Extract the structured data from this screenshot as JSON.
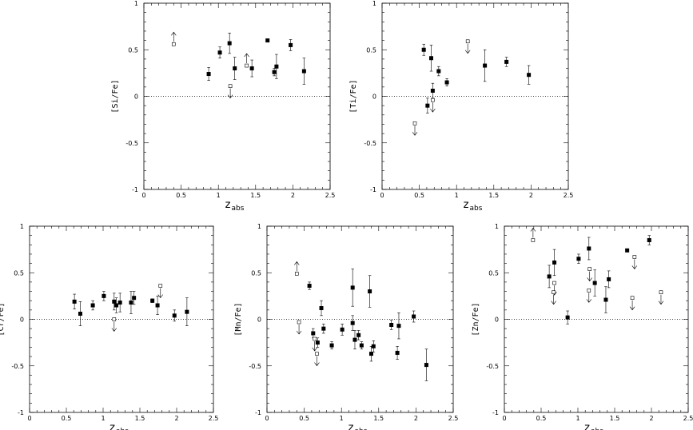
{
  "chart_data": [
    {
      "type": "scatter",
      "ylabel": "[Si/Fe]",
      "xlabel_main": "z",
      "xlabel_sub": "abs",
      "xlim": [
        0,
        2.5
      ],
      "ylim": [
        -1,
        1
      ],
      "xticks": [
        "0",
        "0.5",
        "1",
        "1.5",
        "2",
        "2.5"
      ],
      "yticks": [
        "-1",
        "-0.5",
        "0",
        "0.5",
        "1"
      ],
      "zero_line": true,
      "points": [
        {
          "x": 0.87,
          "y": 0.24,
          "err": 0.07,
          "limit": "none"
        },
        {
          "x": 1.02,
          "y": 0.47,
          "err": 0.06,
          "limit": "none"
        },
        {
          "x": 1.15,
          "y": 0.57,
          "err": 0.11,
          "limit": "none"
        },
        {
          "x": 1.22,
          "y": 0.3,
          "err": 0.12,
          "limit": "none"
        },
        {
          "x": 1.45,
          "y": 0.3,
          "err": 0.09,
          "limit": "none"
        },
        {
          "x": 1.66,
          "y": 0.6,
          "err": 0.0,
          "limit": "none"
        },
        {
          "x": 1.78,
          "y": 0.32,
          "err": 0.13,
          "limit": "none"
        },
        {
          "x": 1.97,
          "y": 0.55,
          "err": 0.06,
          "limit": "none"
        },
        {
          "x": 2.15,
          "y": 0.27,
          "err": 0.14,
          "limit": "none"
        },
        {
          "x": 1.75,
          "y": 0.26,
          "err": 0.04,
          "limit": "none"
        },
        {
          "x": 0.4,
          "y": 0.56,
          "err": 0,
          "limit": "lower"
        },
        {
          "x": 1.38,
          "y": 0.33,
          "err": 0,
          "limit": "lower"
        },
        {
          "x": 1.16,
          "y": 0.11,
          "err": 0,
          "limit": "upper"
        }
      ]
    },
    {
      "type": "scatter",
      "ylabel": "[Ti/Fe]",
      "xlabel_main": "z",
      "xlabel_sub": "abs",
      "xlim": [
        0,
        2.5
      ],
      "ylim": [
        -1,
        1
      ],
      "xticks": [
        "0",
        "0.5",
        "1",
        "1.5",
        "2",
        "2.5"
      ],
      "yticks": [
        "-1",
        "-0.5",
        "0",
        "0.5",
        "1"
      ],
      "zero_line": true,
      "points": [
        {
          "x": 0.56,
          "y": 0.5,
          "err": 0.06,
          "limit": "none"
        },
        {
          "x": 0.61,
          "y": -0.1,
          "err": 0.08,
          "limit": "none"
        },
        {
          "x": 0.66,
          "y": 0.41,
          "err": 0.14,
          "limit": "none"
        },
        {
          "x": 0.68,
          "y": 0.06,
          "err": 0.08,
          "limit": "none"
        },
        {
          "x": 0.76,
          "y": 0.27,
          "err": 0.05,
          "limit": "none"
        },
        {
          "x": 0.87,
          "y": 0.15,
          "err": 0.04,
          "limit": "none"
        },
        {
          "x": 1.38,
          "y": 0.33,
          "err": 0.17,
          "limit": "none"
        },
        {
          "x": 1.67,
          "y": 0.37,
          "err": 0.05,
          "limit": "none"
        },
        {
          "x": 1.97,
          "y": 0.23,
          "err": 0.1,
          "limit": "none"
        },
        {
          "x": 0.44,
          "y": -0.29,
          "err": 0,
          "limit": "upper"
        },
        {
          "x": 0.68,
          "y": -0.04,
          "err": 0,
          "limit": "upper"
        },
        {
          "x": 1.15,
          "y": 0.59,
          "err": 0,
          "limit": "upper"
        }
      ]
    },
    {
      "type": "scatter",
      "ylabel": "[Cr/Fe]",
      "xlabel_main": "z",
      "xlabel_sub": "abs",
      "xlim": [
        0,
        2.5
      ],
      "ylim": [
        -1,
        1
      ],
      "xticks": [
        "0",
        "0.5",
        "1",
        "1.5",
        "2",
        "2.5"
      ],
      "yticks": [
        "-1",
        "-0.5",
        "0",
        "0.5",
        "1"
      ],
      "zero_line": true,
      "points": [
        {
          "x": 0.61,
          "y": 0.19,
          "err": 0.08,
          "limit": "none"
        },
        {
          "x": 0.69,
          "y": 0.06,
          "err": 0.13,
          "limit": "none"
        },
        {
          "x": 0.86,
          "y": 0.15,
          "err": 0.05,
          "limit": "none"
        },
        {
          "x": 1.01,
          "y": 0.25,
          "err": 0.05,
          "limit": "none"
        },
        {
          "x": 1.15,
          "y": 0.19,
          "err": 0.09,
          "limit": "none"
        },
        {
          "x": 1.18,
          "y": 0.15,
          "err": 0.08,
          "limit": "none"
        },
        {
          "x": 1.23,
          "y": 0.18,
          "err": 0.1,
          "limit": "none"
        },
        {
          "x": 1.38,
          "y": 0.18,
          "err": 0.12,
          "limit": "none"
        },
        {
          "x": 1.42,
          "y": 0.23,
          "err": 0.07,
          "limit": "none"
        },
        {
          "x": 1.67,
          "y": 0.2,
          "err": 0.02,
          "limit": "none"
        },
        {
          "x": 1.74,
          "y": 0.15,
          "err": 0.1,
          "limit": "none"
        },
        {
          "x": 1.97,
          "y": 0.04,
          "err": 0.06,
          "limit": "none"
        },
        {
          "x": 2.14,
          "y": 0.08,
          "err": 0.15,
          "limit": "none"
        },
        {
          "x": 1.15,
          "y": 0.0,
          "err": 0,
          "limit": "upper"
        },
        {
          "x": 1.78,
          "y": 0.36,
          "err": 0,
          "limit": "upper"
        }
      ]
    },
    {
      "type": "scatter",
      "ylabel": "[Mn/Fe]",
      "xlabel_main": "z",
      "xlabel_sub": "abs",
      "xlim": [
        0,
        2.5
      ],
      "ylim": [
        -1,
        1
      ],
      "xticks": [
        "0",
        "0.5",
        "1",
        "1.5",
        "2",
        "2.5"
      ],
      "yticks": [
        "-1",
        "-0.5",
        "0",
        "0.5",
        "1"
      ],
      "zero_line": true,
      "points": [
        {
          "x": 0.57,
          "y": 0.36,
          "err": 0.04,
          "limit": "none"
        },
        {
          "x": 0.62,
          "y": -0.15,
          "err": 0.05,
          "limit": "none"
        },
        {
          "x": 0.68,
          "y": -0.25,
          "err": 0.05,
          "limit": "none"
        },
        {
          "x": 0.73,
          "y": 0.12,
          "err": 0.08,
          "limit": "none"
        },
        {
          "x": 0.76,
          "y": -0.1,
          "err": 0.05,
          "limit": "none"
        },
        {
          "x": 0.87,
          "y": -0.28,
          "err": 0.04,
          "limit": "none"
        },
        {
          "x": 1.01,
          "y": -0.11,
          "err": 0.06,
          "limit": "none"
        },
        {
          "x": 1.15,
          "y": 0.34,
          "err": 0.2,
          "limit": "none"
        },
        {
          "x": 1.15,
          "y": -0.04,
          "err": 0.08,
          "limit": "none"
        },
        {
          "x": 1.18,
          "y": -0.22,
          "err": 0.1,
          "limit": "none"
        },
        {
          "x": 1.23,
          "y": -0.17,
          "err": 0.05,
          "limit": "none"
        },
        {
          "x": 1.27,
          "y": -0.28,
          "err": 0.04,
          "limit": "none"
        },
        {
          "x": 1.38,
          "y": 0.3,
          "err": 0.17,
          "limit": "none"
        },
        {
          "x": 1.4,
          "y": -0.37,
          "err": 0.08,
          "limit": "none"
        },
        {
          "x": 1.43,
          "y": -0.29,
          "err": 0.06,
          "limit": "none"
        },
        {
          "x": 1.67,
          "y": -0.06,
          "err": 0.05,
          "limit": "none"
        },
        {
          "x": 1.75,
          "y": -0.36,
          "err": 0.07,
          "limit": "none"
        },
        {
          "x": 1.77,
          "y": -0.07,
          "err": 0.14,
          "limit": "none"
        },
        {
          "x": 1.97,
          "y": 0.03,
          "err": 0.06,
          "limit": "none"
        },
        {
          "x": 2.14,
          "y": -0.49,
          "err": 0.17,
          "limit": "none"
        },
        {
          "x": 0.4,
          "y": 0.49,
          "err": 0,
          "limit": "lower"
        },
        {
          "x": 0.43,
          "y": -0.03,
          "err": 0,
          "limit": "upper"
        },
        {
          "x": 0.64,
          "y": -0.21,
          "err": 0,
          "limit": "upper"
        },
        {
          "x": 0.67,
          "y": -0.37,
          "err": 0,
          "limit": "upper"
        }
      ]
    },
    {
      "type": "scatter",
      "ylabel": "[Zn/Fe]",
      "xlabel_main": "z",
      "xlabel_sub": "abs",
      "xlim": [
        0,
        2.5
      ],
      "ylim": [
        -1,
        1
      ],
      "xticks": [
        "0",
        "0.5",
        "1",
        "1.5",
        "2",
        "2.5"
      ],
      "yticks": [
        "-1",
        "-0.5",
        "0",
        "0.5",
        "1"
      ],
      "zero_line": true,
      "points": [
        {
          "x": 0.61,
          "y": 0.46,
          "err": 0.12,
          "limit": "none"
        },
        {
          "x": 0.68,
          "y": 0.61,
          "err": 0.14,
          "limit": "none"
        },
        {
          "x": 0.86,
          "y": 0.02,
          "err": 0.07,
          "limit": "none"
        },
        {
          "x": 1.01,
          "y": 0.65,
          "err": 0.05,
          "limit": "none"
        },
        {
          "x": 1.15,
          "y": 0.76,
          "err": 0.12,
          "limit": "none"
        },
        {
          "x": 1.23,
          "y": 0.39,
          "err": 0.14,
          "limit": "none"
        },
        {
          "x": 1.38,
          "y": 0.21,
          "err": 0.14,
          "limit": "none"
        },
        {
          "x": 1.42,
          "y": 0.43,
          "err": 0.09,
          "limit": "none"
        },
        {
          "x": 1.67,
          "y": 0.74,
          "err": 0.0,
          "limit": "none"
        },
        {
          "x": 1.97,
          "y": 0.85,
          "err": 0.05,
          "limit": "none"
        },
        {
          "x": 0.39,
          "y": 0.85,
          "err": 0,
          "limit": "lower"
        },
        {
          "x": 0.68,
          "y": 0.39,
          "err": 0,
          "limit": "upper"
        },
        {
          "x": 0.67,
          "y": 0.29,
          "err": 0,
          "limit": "upper"
        },
        {
          "x": 1.16,
          "y": 0.54,
          "err": 0,
          "limit": "upper"
        },
        {
          "x": 1.15,
          "y": 0.31,
          "err": 0,
          "limit": "upper"
        },
        {
          "x": 1.77,
          "y": 0.67,
          "err": 0,
          "limit": "upper"
        },
        {
          "x": 1.74,
          "y": 0.23,
          "err": 0,
          "limit": "upper"
        },
        {
          "x": 2.13,
          "y": 0.29,
          "err": 0,
          "limit": "upper"
        }
      ]
    }
  ]
}
